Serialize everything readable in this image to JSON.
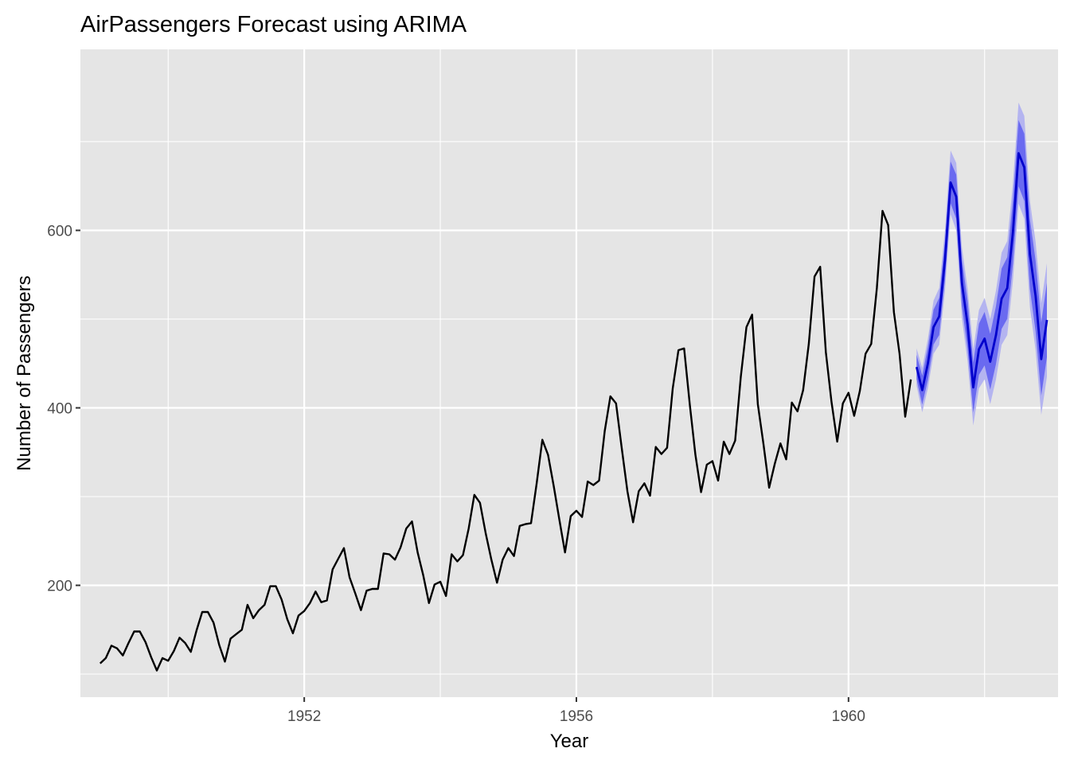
{
  "chart_data": {
    "type": "line",
    "title": "AirPassengers Forecast using ARIMA",
    "xlabel": "Year",
    "ylabel": "Number of Passengers",
    "xlim": [
      1948.71,
      1963.08
    ],
    "ylim": [
      74,
      804
    ],
    "x_major_ticks": [
      1952,
      1956,
      1960
    ],
    "x_tick_labels": [
      "1952",
      "1956",
      "1960"
    ],
    "x_minor_ticks": [
      1950,
      1954,
      1958,
      1962
    ],
    "y_major_ticks": [
      200,
      400,
      600
    ],
    "y_tick_labels": [
      "200",
      "400",
      "600"
    ],
    "y_minor_ticks": [
      100,
      300,
      500,
      700
    ],
    "grid": true,
    "legend": "none",
    "colors": {
      "panel": "#e5e5e5",
      "grid": "#ffffff",
      "observed": "#000000",
      "forecast": "#0000cc",
      "band80": "#6a6af0",
      "band95": "#b4b4f0"
    },
    "observed": {
      "start": 1949,
      "frequency": 12,
      "values": [
        112,
        118,
        132,
        129,
        121,
        135,
        148,
        148,
        136,
        119,
        104,
        118,
        115,
        126,
        141,
        135,
        125,
        149,
        170,
        170,
        158,
        133,
        114,
        140,
        145,
        150,
        178,
        163,
        172,
        178,
        199,
        199,
        184,
        162,
        146,
        166,
        171,
        180,
        193,
        181,
        183,
        218,
        230,
        242,
        209,
        191,
        172,
        194,
        196,
        196,
        236,
        235,
        229,
        243,
        264,
        272,
        237,
        211,
        180,
        201,
        204,
        188,
        235,
        227,
        234,
        264,
        302,
        293,
        259,
        229,
        203,
        229,
        242,
        233,
        267,
        269,
        270,
        315,
        364,
        347,
        312,
        274,
        237,
        278,
        284,
        277,
        317,
        313,
        318,
        374,
        413,
        405,
        355,
        306,
        271,
        306,
        315,
        301,
        356,
        348,
        355,
        422,
        465,
        467,
        404,
        347,
        305,
        336,
        340,
        318,
        362,
        348,
        363,
        435,
        491,
        505,
        404,
        359,
        310,
        337,
        360,
        342,
        406,
        396,
        420,
        472,
        548,
        559,
        463,
        407,
        362,
        405,
        417,
        391,
        419,
        461,
        472,
        535,
        622,
        606,
        508,
        461,
        390,
        432
      ]
    },
    "forecast": {
      "start": 1961,
      "frequency": 12,
      "mean": [
        446,
        420,
        450,
        491,
        503,
        566,
        654,
        638,
        541,
        494,
        423,
        466,
        478,
        452,
        482,
        523,
        535,
        598,
        687,
        671,
        573,
        526,
        455,
        499
      ],
      "half_width_95": [
        21,
        25,
        28,
        30,
        32,
        34,
        36,
        38,
        40,
        41,
        43,
        44,
        46,
        48,
        50,
        52,
        53,
        55,
        57,
        58,
        60,
        61,
        63,
        64
      ],
      "level_80_ratio": 0.654
    }
  }
}
